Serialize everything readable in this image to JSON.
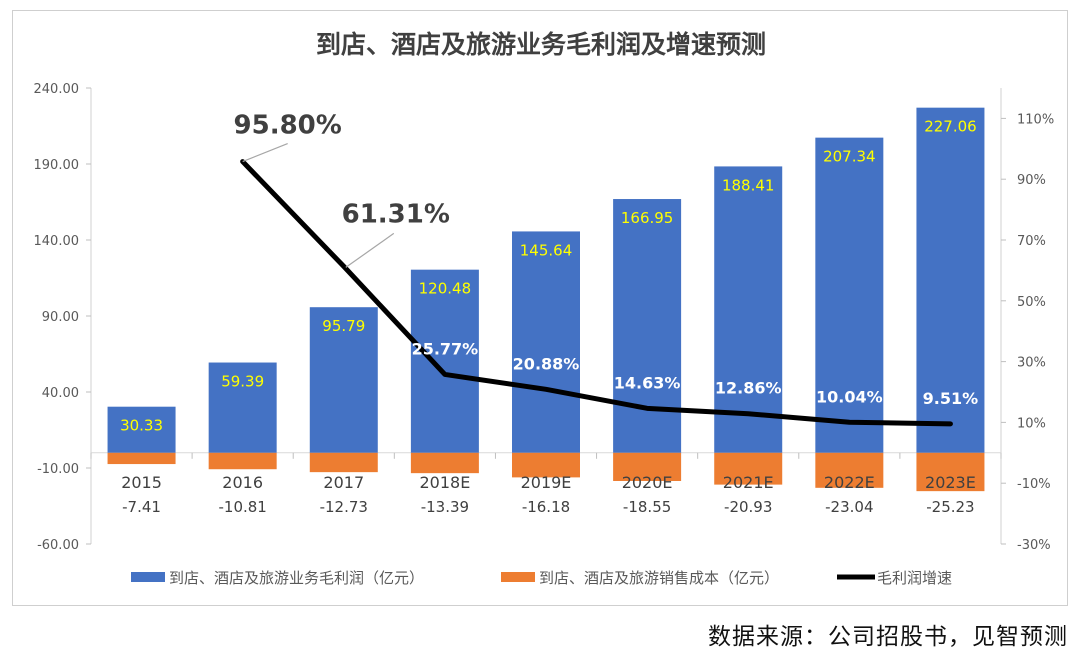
{
  "source": "数据来源：公司招股书，见智预测",
  "chart_data": {
    "type": "bar",
    "title": "到店、酒店及旅游业务毛利润及增速预测",
    "categories": [
      "2015",
      "2016",
      "2017",
      "2018E",
      "2019E",
      "2020E",
      "2021E",
      "2022E",
      "2023E"
    ],
    "left_axis": {
      "min": -60,
      "max": 240,
      "ticks": [
        "240.00",
        "190.00",
        "140.00",
        "90.00",
        "40.00",
        "-10.00",
        "-60.00"
      ],
      "tick_values": [
        240,
        190,
        140,
        90,
        40,
        -10,
        -60
      ]
    },
    "right_axis": {
      "min": -30,
      "max": 120,
      "ticks": [
        "110%",
        "90%",
        "70%",
        "50%",
        "30%",
        "10%",
        "-10%",
        "-30%"
      ],
      "tick_values": [
        110,
        90,
        70,
        50,
        30,
        10,
        -10,
        -30
      ]
    },
    "series": [
      {
        "name": "到店、酒店及旅游业务毛利润（亿元）",
        "type": "bar",
        "color": "#4472C4",
        "values": [
          30.33,
          59.39,
          95.79,
          120.48,
          145.64,
          166.95,
          188.41,
          207.34,
          227.06
        ],
        "labels": [
          "30.33",
          "59.39",
          "95.79",
          "120.48",
          "145.64",
          "166.95",
          "188.41",
          "207.34",
          "227.06"
        ]
      },
      {
        "name": "到店、酒店及旅游销售成本（亿元）",
        "type": "bar",
        "color": "#ED7D31",
        "values": [
          -7.41,
          -10.81,
          -12.73,
          -13.39,
          -16.18,
          -18.55,
          -20.93,
          -23.04,
          -25.23
        ],
        "labels": [
          "-7.41",
          "-10.81",
          "-12.73",
          "-13.39",
          "-16.18",
          "-18.55",
          "-20.93",
          "-23.04",
          "-25.23"
        ]
      },
      {
        "name": "毛利润增速",
        "type": "line",
        "color": "#000000",
        "axis": "right",
        "values": [
          null,
          95.8,
          61.31,
          25.77,
          20.88,
          14.63,
          12.86,
          10.04,
          9.51
        ],
        "labels": [
          "",
          "95.80%",
          "61.31%",
          "25.77%",
          "20.88%",
          "14.63%",
          "12.86%",
          "10.04%",
          "9.51%"
        ]
      }
    ],
    "legend": "bottom",
    "grid": false
  }
}
